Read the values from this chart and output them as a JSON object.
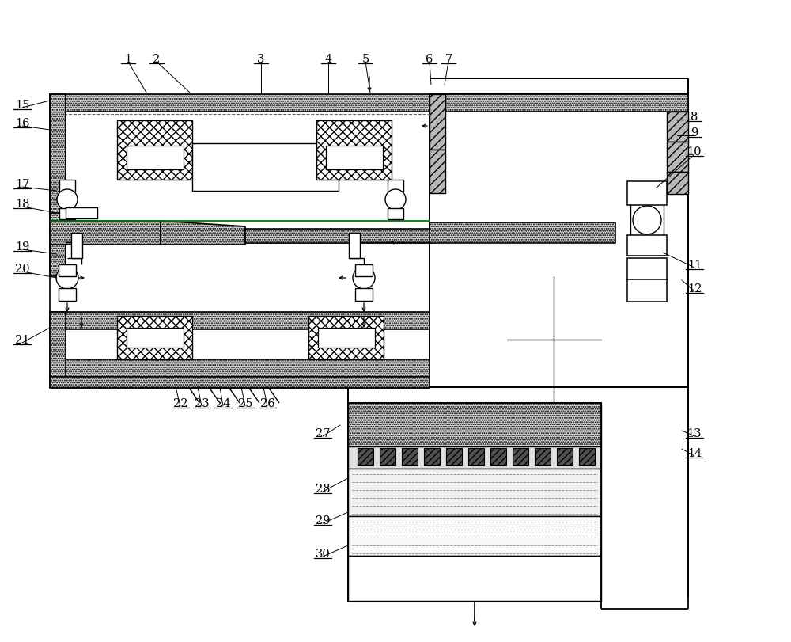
{
  "bg": "#ffffff",
  "lc": "#000000",
  "speckle_fc": "#d4d4d4",
  "fig_w": 10.0,
  "fig_h": 8.12,
  "dpi": 100,
  "labels": [
    [
      "1",
      162,
      75,
      185,
      118
    ],
    [
      "2",
      198,
      75,
      240,
      118
    ],
    [
      "3",
      330,
      75,
      330,
      118
    ],
    [
      "4",
      415,
      75,
      415,
      118
    ],
    [
      "5",
      462,
      75,
      468,
      118
    ],
    [
      "6",
      543,
      75,
      545,
      108
    ],
    [
      "7",
      567,
      75,
      562,
      108
    ],
    [
      "8",
      878,
      148,
      856,
      153
    ],
    [
      "9",
      878,
      168,
      856,
      172
    ],
    [
      "10",
      878,
      192,
      830,
      238
    ],
    [
      "11",
      878,
      335,
      838,
      320
    ],
    [
      "12",
      878,
      365,
      862,
      355
    ],
    [
      "13",
      878,
      548,
      862,
      545
    ],
    [
      "14",
      878,
      573,
      862,
      568
    ],
    [
      "15",
      28,
      133,
      63,
      128
    ],
    [
      "16",
      28,
      156,
      63,
      165
    ],
    [
      "17",
      28,
      233,
      72,
      242
    ],
    [
      "18",
      28,
      258,
      72,
      270
    ],
    [
      "19",
      28,
      312,
      72,
      322
    ],
    [
      "20",
      28,
      340,
      72,
      352
    ],
    [
      "21",
      28,
      430,
      63,
      415
    ],
    [
      "22",
      228,
      510,
      222,
      490
    ],
    [
      "23",
      255,
      510,
      250,
      490
    ],
    [
      "24",
      282,
      510,
      278,
      490
    ],
    [
      "25",
      310,
      510,
      305,
      490
    ],
    [
      "26",
      338,
      510,
      333,
      490
    ],
    [
      "27",
      408,
      548,
      430,
      538
    ],
    [
      "28",
      408,
      618,
      440,
      605
    ],
    [
      "29",
      408,
      658,
      440,
      648
    ],
    [
      "30",
      408,
      700,
      440,
      690
    ]
  ]
}
